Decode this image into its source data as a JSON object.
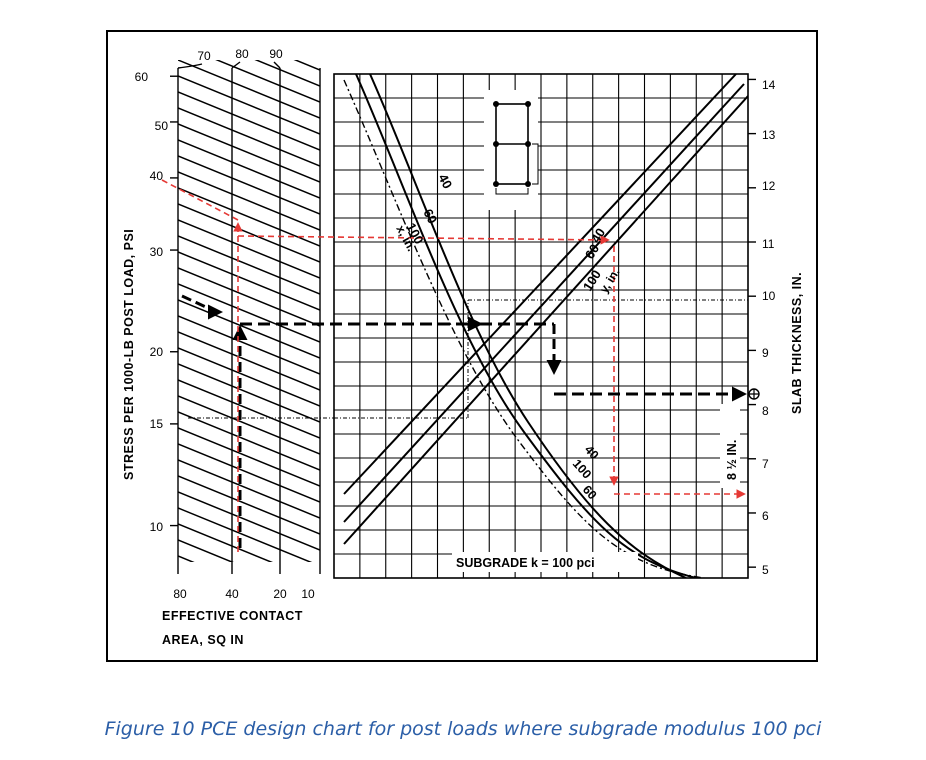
{
  "caption": "Figure 10 PCE design chart for post loads where subgrade modulus 100 pci",
  "colors": {
    "ink": "#000000",
    "example": "#e53935",
    "caption": "#2b5ea7"
  },
  "chart_data": [
    {
      "type": "line",
      "panel": "left",
      "ylabel": "STRESS PER 1000-LB POST LOAD, PSI",
      "xlabel_line1": "EFFECTIVE CONTACT",
      "xlabel_line2": "AREA, SQ IN",
      "y_ticks": [
        "60",
        "50",
        "40",
        "30",
        "20",
        "15",
        "10"
      ],
      "y_tick_values": [
        60,
        50,
        40,
        30,
        20,
        15,
        10
      ],
      "y_scale": "log",
      "ylim": [
        9,
        62
      ],
      "x_bottom_ticks": [
        "80",
        "40",
        "20",
        "10"
      ],
      "x_top_ticks": [
        "70",
        "80",
        "90"
      ],
      "series": [
        {
          "name": "example",
          "color": "#e53935",
          "start_stress": 39,
          "contact_area": 40
        }
      ]
    },
    {
      "type": "line",
      "panel": "right",
      "ylabel": "SLAB THICKNESS, IN.",
      "y_ticks": [
        "14",
        "13",
        "12",
        "11",
        "10",
        "9",
        "8",
        "7",
        "6",
        "5"
      ],
      "y_tick_values": [
        14,
        13,
        12,
        11,
        10,
        9,
        8,
        7,
        6,
        5
      ],
      "ylim": [
        4.8,
        14.1
      ],
      "x_family_labels": [
        "40",
        "60",
        "100"
      ],
      "x_family_name": "x, in.",
      "y_family_labels": [
        "40",
        "60",
        "100"
      ],
      "y_family_name": "y, in.",
      "lower_family_labels": [
        "40",
        "100",
        "60"
      ],
      "subgrade_label": "SUBGRADE k = 100 pci",
      "result_label": "8 ½ IN.",
      "example_results": {
        "black": 8.5,
        "red": 6.5
      }
    }
  ]
}
